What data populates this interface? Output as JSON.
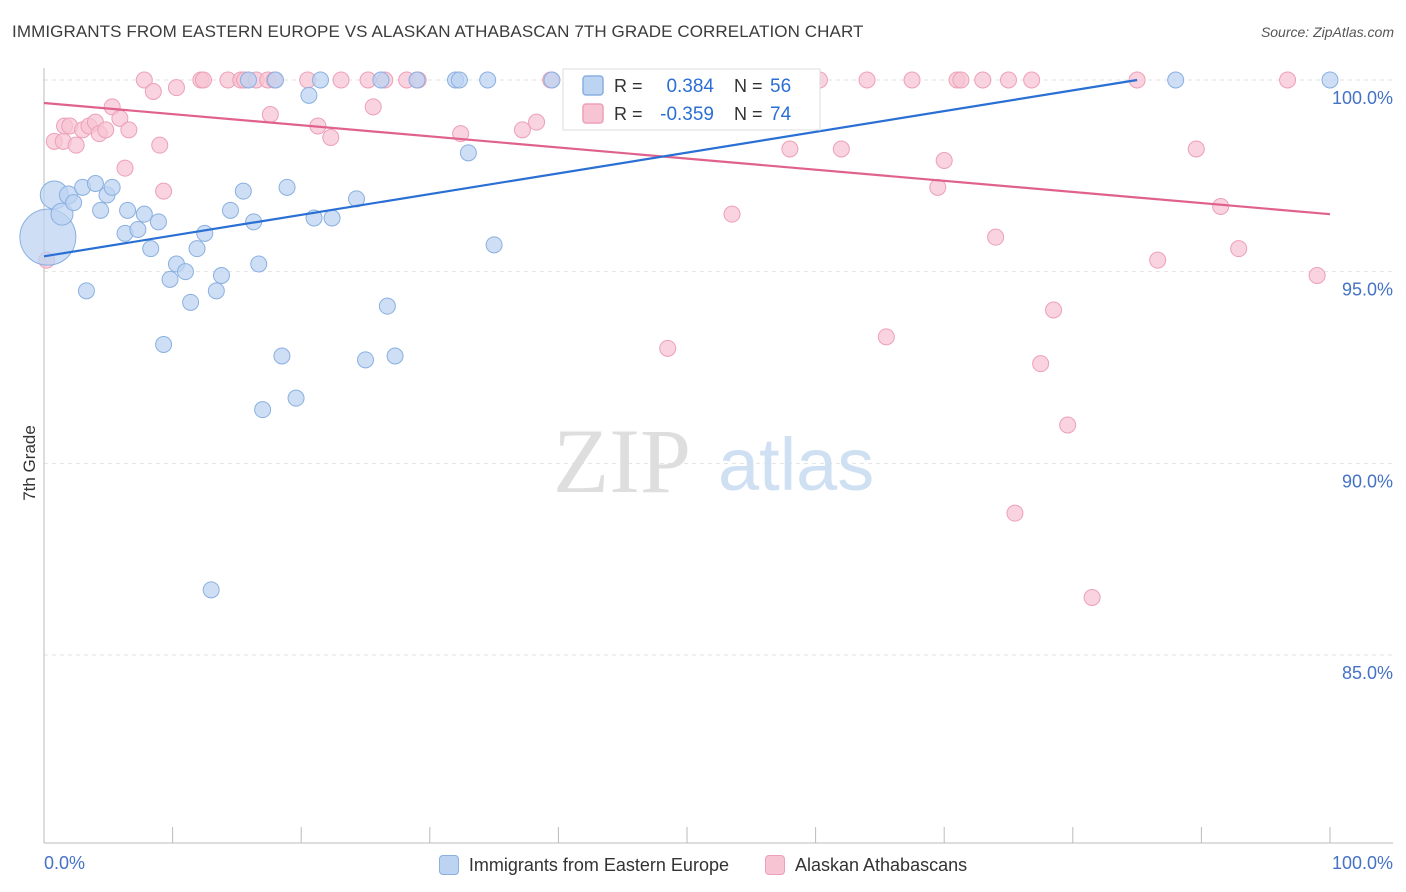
{
  "title": "IMMIGRANTS FROM EASTERN EUROPE VS ALASKAN ATHABASCAN 7TH GRADE CORRELATION CHART",
  "source": "Source: ZipAtlas.com",
  "watermark": {
    "zip": "ZIP",
    "atlas": "atlas"
  },
  "legend_stats": {
    "blue": {
      "r_label": "R =",
      "r_value": "0.384",
      "n_label": "N =",
      "n_value": "56"
    },
    "pink": {
      "r_label": "R =",
      "r_value": "-0.359",
      "n_label": "N =",
      "n_value": "74"
    }
  },
  "colors": {
    "blue_fill": "#bcd3f2",
    "blue_stroke": "#8ab0e0",
    "blue_line": "#2a6fd4",
    "pink_fill": "#f7c4d4",
    "pink_stroke": "#eda0b8",
    "pink_line": "#e0628c",
    "tick_label": "#4472c4",
    "grid": "#e2e2e2",
    "axis": "#bbbbbb"
  },
  "chart_data": {
    "type": "scatter",
    "title": "IMMIGRANTS FROM EASTERN EUROPE VS ALASKAN ATHABASCAN 7TH GRADE CORRELATION CHART",
    "xlabel": "",
    "ylabel": "7th Grade",
    "xlim": [
      0,
      100
    ],
    "ylim": [
      80.5,
      100.3
    ],
    "x_tick_labels": [
      "0.0%",
      "100.0%"
    ],
    "y_ticks": [
      {
        "value": 100,
        "label": "100.0%"
      },
      {
        "value": 95,
        "label": "95.0%"
      },
      {
        "value": 90,
        "label": "90.0%"
      },
      {
        "value": 85,
        "label": "85.0%"
      }
    ],
    "grid": true,
    "legend_position": "top-center",
    "series": [
      {
        "name": "Immigrants from Eastern Europe",
        "color": "blue",
        "r": 0.384,
        "n": 56,
        "trend": {
          "x": [
            0,
            85
          ],
          "y": [
            95.4,
            100.0
          ]
        },
        "points": [
          [
            0.3,
            95.9,
            28
          ],
          [
            0.8,
            97.0,
            14
          ],
          [
            1.4,
            96.5,
            11
          ],
          [
            1.9,
            97.0,
            9
          ],
          [
            2.3,
            96.8,
            8
          ],
          [
            3.0,
            97.2,
            8
          ],
          [
            3.3,
            94.5,
            8
          ],
          [
            4.0,
            97.3,
            8
          ],
          [
            4.4,
            96.6,
            8
          ],
          [
            4.9,
            97.0,
            8
          ],
          [
            5.3,
            97.2,
            8
          ],
          [
            6.3,
            96.0,
            8
          ],
          [
            6.5,
            96.6,
            8
          ],
          [
            7.3,
            96.1,
            8
          ],
          [
            7.8,
            96.5,
            8
          ],
          [
            8.3,
            95.6,
            8
          ],
          [
            8.9,
            96.3,
            8
          ],
          [
            9.3,
            93.1,
            8
          ],
          [
            9.8,
            94.8,
            8
          ],
          [
            10.3,
            95.2,
            8
          ],
          [
            11.0,
            95.0,
            8
          ],
          [
            11.4,
            94.2,
            8
          ],
          [
            11.9,
            95.6,
            8
          ],
          [
            12.5,
            96.0,
            8
          ],
          [
            13.0,
            86.7,
            8
          ],
          [
            13.4,
            94.5,
            8
          ],
          [
            13.8,
            94.9,
            8
          ],
          [
            14.5,
            96.6,
            8
          ],
          [
            15.5,
            97.1,
            8
          ],
          [
            15.9,
            100.0,
            8
          ],
          [
            16.3,
            96.3,
            8
          ],
          [
            16.7,
            95.2,
            8
          ],
          [
            17.0,
            91.4,
            8
          ],
          [
            18.0,
            100.0,
            8
          ],
          [
            18.5,
            92.8,
            8
          ],
          [
            18.9,
            97.2,
            8
          ],
          [
            19.6,
            91.7,
            8
          ],
          [
            20.6,
            99.6,
            8
          ],
          [
            21.0,
            96.4,
            8
          ],
          [
            21.5,
            100.0,
            8
          ],
          [
            22.4,
            96.4,
            8
          ],
          [
            24.3,
            96.9,
            8
          ],
          [
            25.0,
            92.7,
            8
          ],
          [
            26.2,
            100.0,
            8
          ],
          [
            26.7,
            94.1,
            8
          ],
          [
            27.3,
            92.8,
            8
          ],
          [
            29.0,
            100.0,
            8
          ],
          [
            32.0,
            100.0,
            8
          ],
          [
            32.3,
            100.0,
            8
          ],
          [
            33.0,
            98.1,
            8
          ],
          [
            34.5,
            100.0,
            8
          ],
          [
            35.0,
            95.7,
            8
          ],
          [
            39.5,
            100.0,
            8
          ],
          [
            45.3,
            100.0,
            8
          ],
          [
            88.0,
            100.0,
            8
          ],
          [
            100.0,
            100.0,
            8
          ]
        ]
      },
      {
        "name": "Alaskan Athabascans",
        "color": "pink",
        "r": -0.359,
        "n": 74,
        "trend": {
          "x": [
            0,
            100
          ],
          "y": [
            99.4,
            96.5
          ]
        },
        "points": [
          [
            0.2,
            95.3,
            8
          ],
          [
            0.8,
            98.4,
            8
          ],
          [
            1.5,
            98.4,
            8
          ],
          [
            1.6,
            98.8,
            8
          ],
          [
            2.0,
            98.8,
            8
          ],
          [
            2.5,
            98.3,
            8
          ],
          [
            3.0,
            98.7,
            8
          ],
          [
            3.5,
            98.8,
            8
          ],
          [
            4.0,
            98.9,
            8
          ],
          [
            4.3,
            98.6,
            8
          ],
          [
            4.8,
            98.7,
            8
          ],
          [
            5.3,
            99.3,
            8
          ],
          [
            5.9,
            99.0,
            8
          ],
          [
            6.3,
            97.7,
            8
          ],
          [
            6.6,
            98.7,
            8
          ],
          [
            7.8,
            100.0,
            8
          ],
          [
            8.5,
            99.7,
            8
          ],
          [
            9.0,
            98.3,
            8
          ],
          [
            9.3,
            97.1,
            8
          ],
          [
            10.3,
            99.8,
            8
          ],
          [
            12.2,
            100.0,
            8
          ],
          [
            12.4,
            100.0,
            8
          ],
          [
            14.3,
            100.0,
            8
          ],
          [
            15.3,
            100.0,
            8
          ],
          [
            15.6,
            100.0,
            8
          ],
          [
            16.5,
            100.0,
            8
          ],
          [
            17.4,
            100.0,
            8
          ],
          [
            17.6,
            99.1,
            8
          ],
          [
            17.9,
            100.0,
            8
          ],
          [
            20.5,
            100.0,
            8
          ],
          [
            21.3,
            98.8,
            8
          ],
          [
            22.3,
            98.5,
            8
          ],
          [
            23.1,
            100.0,
            8
          ],
          [
            25.2,
            100.0,
            8
          ],
          [
            25.6,
            99.3,
            8
          ],
          [
            26.5,
            100.0,
            8
          ],
          [
            28.2,
            100.0,
            8
          ],
          [
            29.1,
            100.0,
            8
          ],
          [
            32.4,
            98.6,
            8
          ],
          [
            37.2,
            98.7,
            8
          ],
          [
            38.3,
            98.9,
            8
          ],
          [
            39.4,
            100.0,
            8
          ],
          [
            41.0,
            100.0,
            8
          ],
          [
            46.5,
            100.0,
            8
          ],
          [
            48.5,
            93.0,
            8
          ],
          [
            50.3,
            100.0,
            8
          ],
          [
            53.5,
            96.5,
            8
          ],
          [
            56.0,
            100.0,
            8
          ],
          [
            58.0,
            98.2,
            8
          ],
          [
            60.3,
            100.0,
            8
          ],
          [
            62.0,
            98.2,
            8
          ],
          [
            64.0,
            100.0,
            8
          ],
          [
            65.5,
            93.3,
            8
          ],
          [
            67.5,
            100.0,
            8
          ],
          [
            69.5,
            97.2,
            8
          ],
          [
            70.0,
            97.9,
            8
          ],
          [
            71.0,
            100.0,
            8
          ],
          [
            71.3,
            100.0,
            8
          ],
          [
            73.0,
            100.0,
            8
          ],
          [
            74.0,
            95.9,
            8
          ],
          [
            75.0,
            100.0,
            8
          ],
          [
            75.5,
            88.7,
            8
          ],
          [
            76.8,
            100.0,
            8
          ],
          [
            77.5,
            92.6,
            8
          ],
          [
            78.5,
            94.0,
            8
          ],
          [
            79.6,
            91.0,
            8
          ],
          [
            81.5,
            86.5,
            8
          ],
          [
            85.0,
            100.0,
            8
          ],
          [
            86.6,
            95.3,
            8
          ],
          [
            89.6,
            98.2,
            8
          ],
          [
            91.5,
            96.7,
            8
          ],
          [
            92.9,
            95.6,
            8
          ],
          [
            96.7,
            100.0,
            8
          ],
          [
            99.0,
            94.9,
            8
          ]
        ]
      }
    ]
  },
  "bottom_legend": [
    {
      "label": "Immigrants from Eastern Europe"
    },
    {
      "label": "Alaskan Athabascans"
    }
  ]
}
